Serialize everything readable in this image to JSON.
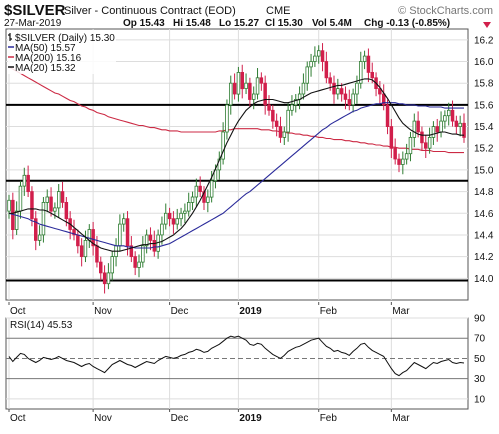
{
  "header": {
    "symbol": "$SILVER",
    "description": "Silver - Continuous Contract (EOD)",
    "exchange": "CME",
    "watermark": "© StockCharts.com",
    "date": "27-Mar-2019",
    "open": "Op 15.43",
    "high": "Hi 15.48",
    "low": "Lo 15.27",
    "close": "Cl 15.30",
    "volume": "Vol 5.4M",
    "change": "Chg -0.13 (-0.85%)",
    "change_arrow": "down-triangle-icon"
  },
  "colors": {
    "up": "#2e7d32",
    "down": "#d11f4b",
    "ma50": "#2a2a9a",
    "ma200": "#cc2a44",
    "ma20": "#111111",
    "rsi": "#111111",
    "grid": "#dddddd"
  },
  "chart_data": [
    {
      "type": "candlestick",
      "title": "$SILVER (Daily) 15.30",
      "legend": [
        {
          "label": "$SILVER (Daily) 15.30",
          "color": "#111111",
          "kind": "bar"
        },
        {
          "label": "MA(50) 15.57",
          "color": "#2a2a9a",
          "kind": "line"
        },
        {
          "label": "MA(200) 15.16",
          "color": "#cc2a44",
          "kind": "line"
        },
        {
          "label": "MA(20) 15.32",
          "color": "#111111",
          "kind": "line"
        }
      ],
      "legend_position": "top-left",
      "ylim": [
        13.8,
        16.3
      ],
      "y_ticks": [
        "14.0",
        "14.2",
        "14.4",
        "14.6",
        "14.8",
        "15.0",
        "15.2",
        "15.4",
        "15.6",
        "15.8",
        "16.0",
        "16.2"
      ],
      "y_tick_values": [
        14.0,
        14.2,
        14.4,
        14.6,
        14.8,
        15.0,
        15.2,
        15.4,
        15.6,
        15.8,
        16.0,
        16.2
      ],
      "x_labels": [
        {
          "label": "Oct",
          "bar": 0
        },
        {
          "label": "Nov",
          "bar": 22
        },
        {
          "label": "Dec",
          "bar": 42
        },
        {
          "label": "2019",
          "bar": 60
        },
        {
          "label": "Feb",
          "bar": 81
        },
        {
          "label": "Mar",
          "bar": 100
        }
      ],
      "horizontal_lines": [
        15.6,
        14.9,
        13.98
      ],
      "closes": [
        14.72,
        14.45,
        14.62,
        14.85,
        14.95,
        14.8,
        14.55,
        14.35,
        14.4,
        14.7,
        14.75,
        14.62,
        14.65,
        14.8,
        14.7,
        14.55,
        14.45,
        14.4,
        14.3,
        14.2,
        14.35,
        14.45,
        14.3,
        14.15,
        14.05,
        13.95,
        14.05,
        14.2,
        14.3,
        14.5,
        14.55,
        14.3,
        14.2,
        14.1,
        14.15,
        14.3,
        14.4,
        14.35,
        14.25,
        14.4,
        14.5,
        14.6,
        14.55,
        14.5,
        14.55,
        14.6,
        14.62,
        14.7,
        14.75,
        14.85,
        14.8,
        14.7,
        14.75,
        14.9,
        15.0,
        15.1,
        15.35,
        15.6,
        15.8,
        15.7,
        15.9,
        15.75,
        15.8,
        15.65,
        15.7,
        15.85,
        15.8,
        15.6,
        15.55,
        15.45,
        15.4,
        15.3,
        15.35,
        15.55,
        15.6,
        15.65,
        15.7,
        15.8,
        15.95,
        16.0,
        16.05,
        16.1,
        16.0,
        15.85,
        15.8,
        15.7,
        15.75,
        15.7,
        15.65,
        15.6,
        15.7,
        15.8,
        16.0,
        16.05,
        15.9,
        15.85,
        15.75,
        15.7,
        15.6,
        15.4,
        15.2,
        15.1,
        15.05,
        15.1,
        15.15,
        15.3,
        15.45,
        15.35,
        15.25,
        15.2,
        15.3,
        15.4,
        15.35,
        15.45,
        15.5,
        15.55,
        15.45,
        15.4,
        15.43,
        15.3
      ],
      "series_ma50": [
        14.6,
        14.59,
        14.58,
        14.57,
        14.56,
        14.55,
        14.53,
        14.52,
        14.5,
        14.49,
        14.48,
        14.47,
        14.46,
        14.45,
        14.44,
        14.43,
        14.42,
        14.41,
        14.4,
        14.39,
        14.38,
        14.37,
        14.36,
        14.35,
        14.34,
        14.33,
        14.32,
        14.31,
        14.3,
        14.3,
        14.3,
        14.29,
        14.29,
        14.28,
        14.28,
        14.28,
        14.28,
        14.28,
        14.29,
        14.29,
        14.3,
        14.31,
        14.32,
        14.34,
        14.36,
        14.38,
        14.4,
        14.42,
        14.44,
        14.46,
        14.48,
        14.5,
        14.52,
        14.54,
        14.56,
        14.58,
        14.6,
        14.63,
        14.66,
        14.69,
        14.72,
        14.75,
        14.78,
        14.8,
        14.83,
        14.86,
        14.89,
        14.92,
        14.95,
        14.98,
        15.01,
        15.04,
        15.07,
        15.1,
        15.13,
        15.16,
        15.19,
        15.22,
        15.25,
        15.28,
        15.31,
        15.34,
        15.37,
        15.39,
        15.42,
        15.44,
        15.46,
        15.48,
        15.5,
        15.52,
        15.54,
        15.55,
        15.57,
        15.58,
        15.59,
        15.6,
        15.61,
        15.61,
        15.62,
        15.62,
        15.62,
        15.62,
        15.61,
        15.61,
        15.6,
        15.6,
        15.6,
        15.59,
        15.59,
        15.59,
        15.58,
        15.58,
        15.58,
        15.58,
        15.57,
        15.57,
        15.57,
        15.57,
        15.57,
        15.57
      ],
      "series_ma200": [
        15.95,
        15.93,
        15.91,
        15.89,
        15.87,
        15.85,
        15.83,
        15.81,
        15.79,
        15.77,
        15.75,
        15.73,
        15.71,
        15.7,
        15.68,
        15.66,
        15.64,
        15.63,
        15.61,
        15.59,
        15.58,
        15.56,
        15.55,
        15.53,
        15.52,
        15.51,
        15.49,
        15.48,
        15.47,
        15.46,
        15.45,
        15.44,
        15.43,
        15.42,
        15.41,
        15.41,
        15.4,
        15.39,
        15.39,
        15.38,
        15.37,
        15.37,
        15.36,
        15.36,
        15.36,
        15.35,
        15.35,
        15.35,
        15.35,
        15.35,
        15.35,
        15.35,
        15.35,
        15.35,
        15.35,
        15.36,
        15.36,
        15.37,
        15.37,
        15.38,
        15.38,
        15.38,
        15.38,
        15.38,
        15.38,
        15.38,
        15.37,
        15.37,
        15.37,
        15.36,
        15.36,
        15.35,
        15.35,
        15.34,
        15.34,
        15.33,
        15.33,
        15.32,
        15.32,
        15.31,
        15.31,
        15.3,
        15.3,
        15.29,
        15.29,
        15.28,
        15.28,
        15.28,
        15.27,
        15.27,
        15.26,
        15.26,
        15.25,
        15.25,
        15.24,
        15.24,
        15.23,
        15.23,
        15.22,
        15.22,
        15.21,
        15.21,
        15.2,
        15.2,
        15.2,
        15.19,
        15.19,
        15.19,
        15.18,
        15.18,
        15.18,
        15.17,
        15.17,
        15.17,
        15.17,
        15.16,
        15.16,
        15.16,
        15.16,
        15.16
      ],
      "series_ma20": [
        14.6,
        14.6,
        14.61,
        14.62,
        14.63,
        14.64,
        14.64,
        14.64,
        14.63,
        14.63,
        14.62,
        14.6,
        14.58,
        14.56,
        14.54,
        14.52,
        14.5,
        14.47,
        14.44,
        14.41,
        14.38,
        14.35,
        14.32,
        14.3,
        14.28,
        14.27,
        14.26,
        14.25,
        14.25,
        14.25,
        14.26,
        14.27,
        14.28,
        14.29,
        14.3,
        14.31,
        14.31,
        14.32,
        14.32,
        14.33,
        14.34,
        14.36,
        14.38,
        14.4,
        14.43,
        14.46,
        14.5,
        14.55,
        14.6,
        14.66,
        14.72,
        14.79,
        14.86,
        14.93,
        15.01,
        15.09,
        15.17,
        15.25,
        15.32,
        15.39,
        15.45,
        15.5,
        15.55,
        15.58,
        15.61,
        15.63,
        15.64,
        15.65,
        15.65,
        15.65,
        15.64,
        15.63,
        15.62,
        15.62,
        15.63,
        15.64,
        15.65,
        15.67,
        15.69,
        15.71,
        15.72,
        15.73,
        15.74,
        15.75,
        15.76,
        15.77,
        15.78,
        15.78,
        15.79,
        15.8,
        15.81,
        15.82,
        15.83,
        15.84,
        15.84,
        15.83,
        15.8,
        15.76,
        15.71,
        15.66,
        15.6,
        15.54,
        15.48,
        15.43,
        15.4,
        15.37,
        15.35,
        15.33,
        15.32,
        15.32,
        15.32,
        15.33,
        15.34,
        15.35,
        15.35,
        15.34,
        15.33,
        15.33,
        15.32,
        15.32
      ]
    },
    {
      "type": "line",
      "title": "RSI(14) 45.53",
      "ylim": [
        0,
        90
      ],
      "y_ticks": [
        "10",
        "30",
        "50",
        "70",
        "90"
      ],
      "y_tick_values": [
        10,
        30,
        50,
        70,
        90
      ],
      "reference_lines": [
        30,
        50,
        70
      ],
      "x_labels": [
        {
          "label": "Oct",
          "bar": 0
        },
        {
          "label": "Nov",
          "bar": 22
        },
        {
          "label": "Dec",
          "bar": 42
        },
        {
          "label": "2019",
          "bar": 60
        },
        {
          "label": "Feb",
          "bar": 81
        },
        {
          "label": "Mar",
          "bar": 100
        }
      ],
      "values": [
        52,
        47,
        51,
        55,
        54,
        50,
        48,
        46,
        48,
        51,
        50,
        49,
        50,
        52,
        50,
        48,
        47,
        46,
        44,
        42,
        44,
        45,
        42,
        40,
        38,
        36,
        40,
        44,
        46,
        48,
        46,
        44,
        43,
        41,
        43,
        45,
        47,
        46,
        45,
        48,
        50,
        52,
        51,
        50,
        51,
        53,
        54,
        56,
        57,
        59,
        58,
        56,
        57,
        60,
        62,
        64,
        67,
        70,
        72,
        71,
        72,
        70,
        68,
        64,
        63,
        65,
        64,
        60,
        57,
        54,
        52,
        50,
        53,
        57,
        59,
        61,
        62,
        64,
        66,
        68,
        69,
        70,
        66,
        62,
        60,
        57,
        58,
        56,
        55,
        53,
        57,
        60,
        64,
        65,
        61,
        58,
        56,
        54,
        52,
        46,
        40,
        35,
        33,
        36,
        38,
        42,
        46,
        44,
        42,
        40,
        43,
        46,
        45,
        47,
        48,
        49,
        46,
        45,
        46,
        45.53
      ]
    }
  ]
}
